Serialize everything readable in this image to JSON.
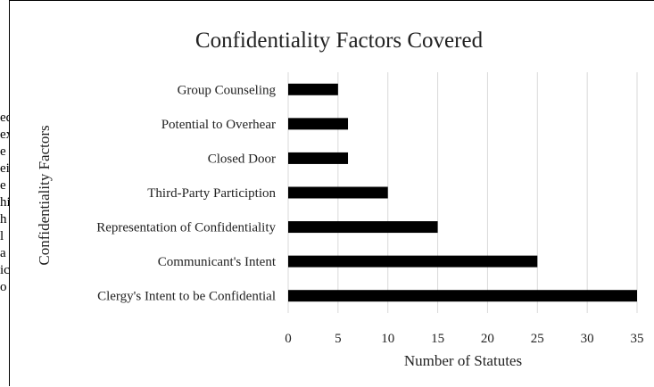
{
  "background_fragments": [
    "ed",
    "ex",
    "e",
    "ei",
    "e",
    "hi",
    "h",
    "l",
    "a",
    "ic",
    "o"
  ],
  "chart_data": {
    "type": "bar",
    "orientation": "horizontal",
    "title": "Confidentiality Factors Covered",
    "xlabel": "Number of Statutes",
    "ylabel": "Confidentiality Factors",
    "categories": [
      "Group Counseling",
      "Potential to Overhear",
      "Closed Door",
      "Third-Party Particiption",
      "Representation of Confidentiality",
      "Communicant's Intent",
      "Clergy's Intent to be Confidential"
    ],
    "values": [
      5,
      6,
      6,
      10,
      15,
      25,
      35
    ],
    "xlim": [
      0,
      35
    ],
    "xticks": [
      0,
      5,
      10,
      15,
      20,
      25,
      30,
      35
    ],
    "grid": "vertical",
    "legend": "none",
    "bar_color": "#000000",
    "grid_color": "#d9d9d9"
  }
}
